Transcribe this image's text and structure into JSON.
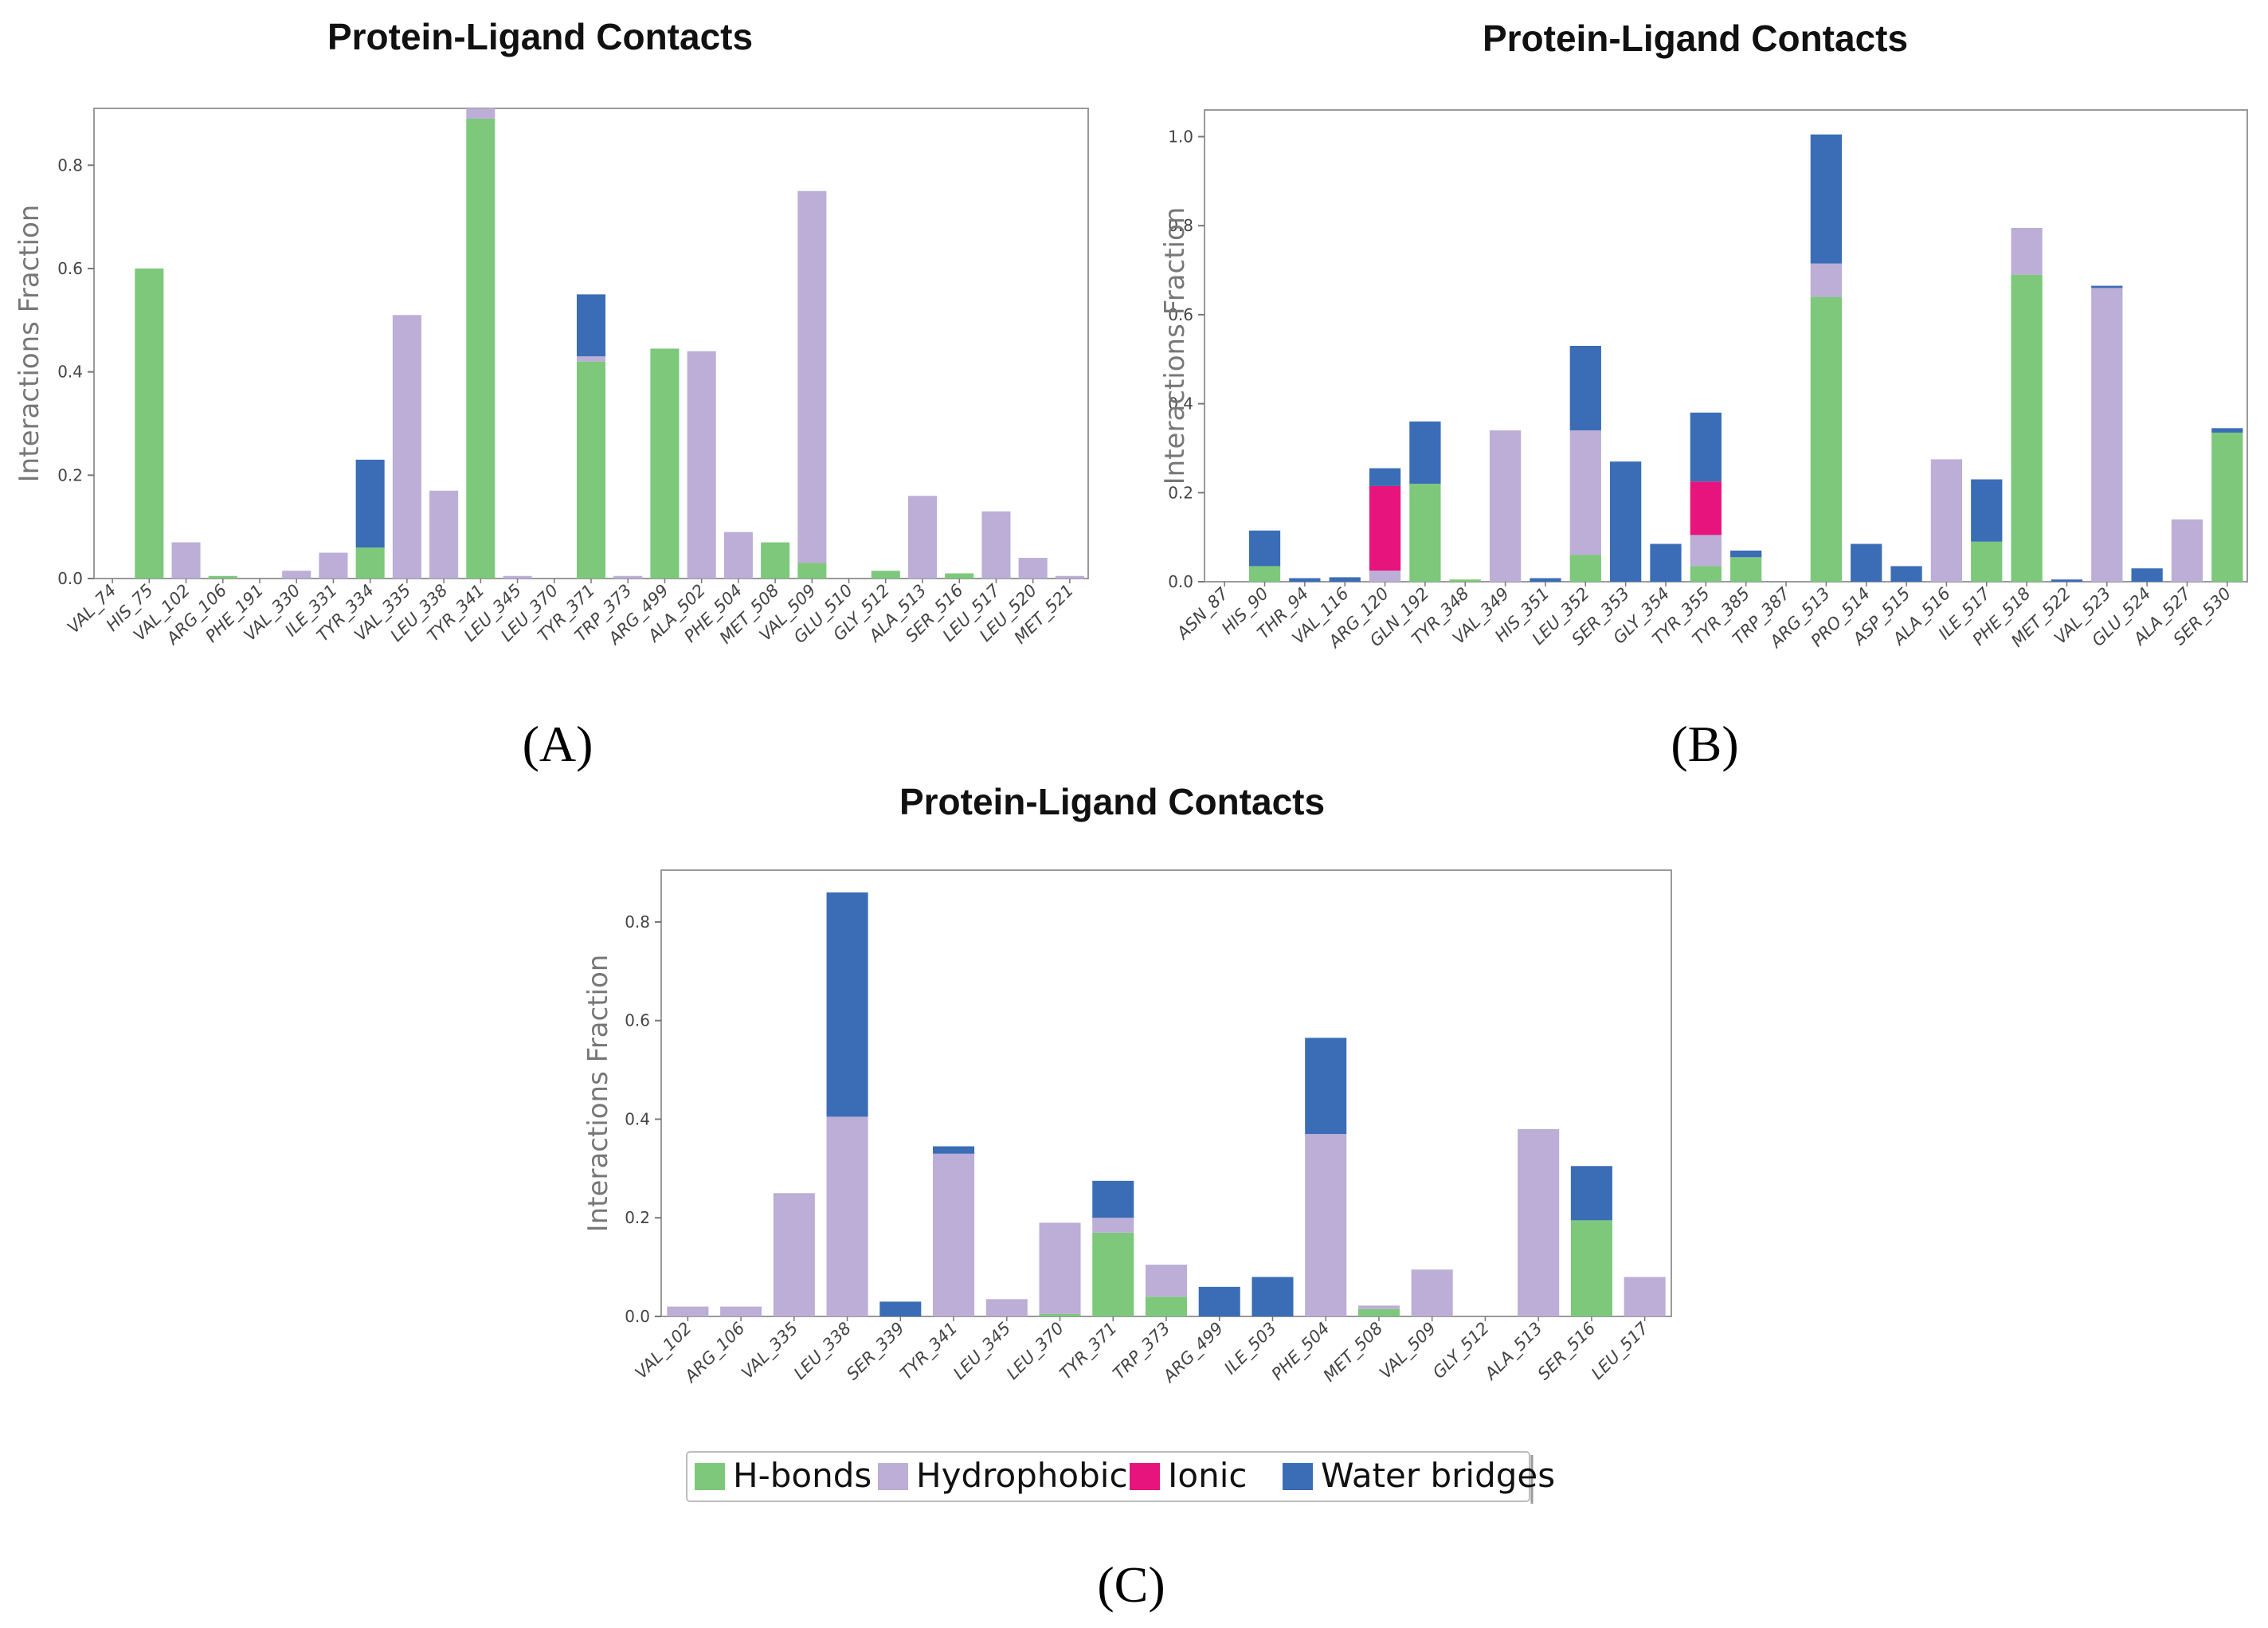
{
  "colors": {
    "h_bonds": "#7dc87b",
    "hydrophobic": "#bcaed6",
    "ionic": "#e8147d",
    "water_bridges": "#3b6db6"
  },
  "legend": {
    "h_bonds": "H-bonds",
    "hydrophobic": "Hydrophobic",
    "ionic": "Ionic",
    "water_bridges": "Water bridges"
  },
  "chart_data": [
    {
      "id": "A",
      "panel_label": "(A)",
      "type": "bar",
      "stacked": true,
      "title": "Protein-Ligand Contacts",
      "ylabel": "Interactions Fraction",
      "xlabel": "",
      "ylim": [
        0,
        0.91
      ],
      "yticks": [
        "0.0",
        "0.2",
        "0.4",
        "0.6",
        "0.8"
      ],
      "categories": [
        "VAL_74",
        "HIS_75",
        "VAL_102",
        "ARG_106",
        "PHE_191",
        "VAL_330",
        "ILE_331",
        "TYR_334",
        "VAL_335",
        "LEU_338",
        "TYR_341",
        "LEU_345",
        "LEU_370",
        "TYR_371",
        "TRP_373",
        "ARG_499",
        "ALA_502",
        "PHE_504",
        "MET_508",
        "VAL_509",
        "GLU_510",
        "GLY_512",
        "ALA_513",
        "SER_516",
        "LEU_517",
        "LEU_520",
        "MET_521"
      ],
      "series": [
        {
          "name": "H-bonds",
          "key": "h_bonds",
          "values": [
            0,
            0.6,
            0,
            0.005,
            0,
            0,
            0,
            0.06,
            0,
            0,
            0.89,
            0,
            0,
            0.42,
            0,
            0.445,
            0,
            0,
            0.07,
            0.03,
            0,
            0.015,
            0,
            0.01,
            0,
            0,
            0
          ]
        },
        {
          "name": "Hydrophobic",
          "key": "hydrophobic",
          "values": [
            0,
            0,
            0.07,
            0,
            0,
            0.015,
            0.05,
            0,
            0.51,
            0.17,
            0.02,
            0.005,
            0,
            0.01,
            0.005,
            0,
            0.44,
            0.09,
            0,
            0.72,
            0,
            0,
            0.16,
            0,
            0.13,
            0.04,
            0.005
          ]
        },
        {
          "name": "Ionic",
          "key": "ionic",
          "values": [
            0,
            0,
            0,
            0,
            0,
            0,
            0,
            0,
            0,
            0,
            0,
            0,
            0,
            0,
            0,
            0,
            0,
            0,
            0,
            0,
            0,
            0,
            0,
            0,
            0,
            0,
            0
          ]
        },
        {
          "name": "Water bridges",
          "key": "water_bridges",
          "values": [
            0,
            0,
            0,
            0,
            0,
            0,
            0,
            0.17,
            0,
            0,
            0,
            0,
            0,
            0.12,
            0,
            0,
            0,
            0,
            0,
            0,
            0,
            0,
            0,
            0,
            0,
            0,
            0
          ]
        }
      ]
    },
    {
      "id": "B",
      "panel_label": "(B)",
      "type": "bar",
      "stacked": true,
      "title": "Protein-Ligand Contacts",
      "ylabel": "Interactions Fraction",
      "xlabel": "",
      "ylim": [
        0,
        1.06
      ],
      "yticks": [
        "0.0",
        "0.2",
        "0.4",
        "0.6",
        "0.8",
        "1.0"
      ],
      "categories": [
        "ASN_87",
        "HIS_90",
        "THR_94",
        "VAL_116",
        "ARG_120",
        "GLN_192",
        "TYR_348",
        "VAL_349",
        "HIS_351",
        "LEU_352",
        "SER_353",
        "GLY_354",
        "TYR_355",
        "TYR_385",
        "TRP_387",
        "ARG_513",
        "PRO_514",
        "ASP_515",
        "ALA_516",
        "ILE_517",
        "PHE_518",
        "MET_522",
        "VAL_523",
        "GLU_524",
        "ALA_527",
        "SER_530"
      ],
      "series": [
        {
          "name": "H-bonds",
          "key": "h_bonds",
          "values": [
            0,
            0.035,
            0,
            0,
            0,
            0.22,
            0.005,
            0,
            0,
            0.06,
            0,
            0,
            0.035,
            0.055,
            0,
            0.64,
            0,
            0,
            0,
            0.09,
            0.69,
            0,
            0,
            0,
            0,
            0.335
          ]
        },
        {
          "name": "Hydrophobic",
          "key": "hydrophobic",
          "values": [
            0,
            0,
            0,
            0,
            0.025,
            0,
            0,
            0.34,
            0,
            0.28,
            0,
            0,
            0.07,
            0,
            0,
            0.075,
            0,
            0,
            0.275,
            0,
            0.105,
            0,
            0.66,
            0,
            0.14,
            0
          ]
        },
        {
          "name": "Ionic",
          "key": "ionic",
          "values": [
            0,
            0,
            0,
            0,
            0.19,
            0,
            0,
            0,
            0,
            0,
            0,
            0,
            0.12,
            0,
            0,
            0,
            0,
            0,
            0,
            0,
            0,
            0,
            0,
            0,
            0,
            0
          ]
        },
        {
          "name": "Water bridges",
          "key": "water_bridges",
          "values": [
            0,
            0.08,
            0.008,
            0.01,
            0.04,
            0.14,
            0,
            0,
            0.008,
            0.19,
            0.27,
            0.085,
            0.155,
            0.015,
            0,
            0.29,
            0.085,
            0.035,
            0,
            0.14,
            0,
            0.005,
            0.005,
            0.03,
            0,
            0.01
          ]
        }
      ]
    },
    {
      "id": "C",
      "panel_label": "(C)",
      "type": "bar",
      "stacked": true,
      "title": "Protein-Ligand Contacts",
      "ylabel": "Interactions Fraction",
      "xlabel": "",
      "ylim": [
        0,
        0.905
      ],
      "yticks": [
        "0.0",
        "0.2",
        "0.4",
        "0.6",
        "0.8"
      ],
      "categories": [
        "VAL_102",
        "ARG_106",
        "VAL_335",
        "LEU_338",
        "SER_339",
        "TYR_341",
        "LEU_345",
        "LEU_370",
        "TYR_371",
        "TRP_373",
        "ARG_499",
        "ILE_503",
        "PHE_504",
        "MET_508",
        "VAL_509",
        "GLY_512",
        "ALA_513",
        "SER_516",
        "LEU_517"
      ],
      "series": [
        {
          "name": "H-bonds",
          "key": "h_bonds",
          "values": [
            0,
            0,
            0,
            0,
            0,
            0,
            0,
            0.005,
            0.17,
            0.04,
            0,
            0,
            0,
            0.015,
            0,
            0,
            0,
            0.195,
            0
          ]
        },
        {
          "name": "Hydrophobic",
          "key": "hydrophobic",
          "values": [
            0.02,
            0.02,
            0.25,
            0.405,
            0,
            0.33,
            0.035,
            0.185,
            0.03,
            0.065,
            0,
            0,
            0.37,
            0.007,
            0.095,
            0,
            0.38,
            0,
            0.08
          ]
        },
        {
          "name": "Ionic",
          "key": "ionic",
          "values": [
            0,
            0,
            0,
            0,
            0,
            0,
            0,
            0,
            0,
            0,
            0,
            0,
            0,
            0,
            0,
            0,
            0,
            0,
            0
          ]
        },
        {
          "name": "Water bridges",
          "key": "water_bridges",
          "values": [
            0,
            0,
            0,
            0.455,
            0.03,
            0.015,
            0,
            0,
            0.075,
            0,
            0.06,
            0.08,
            0.195,
            0,
            0,
            0,
            0,
            0.11,
            0
          ]
        }
      ]
    }
  ]
}
